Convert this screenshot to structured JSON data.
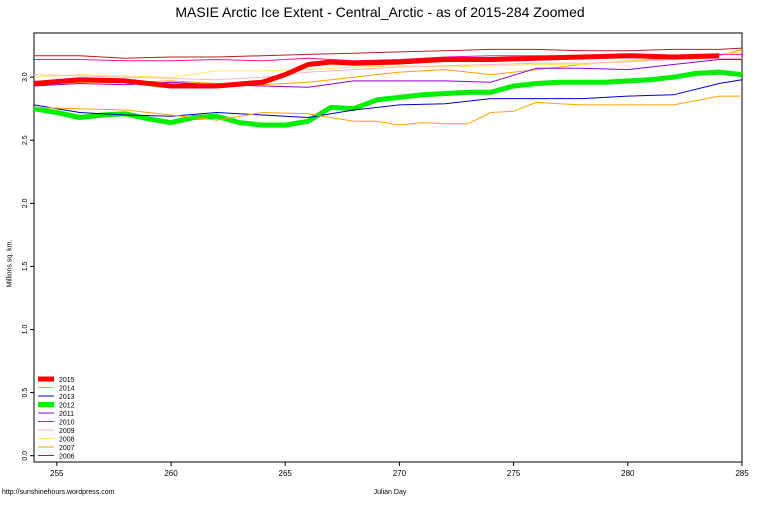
{
  "chart_data": {
    "type": "line",
    "title": "MASIE Arctic Ice Extent - Central_Arctic - as of 2015-284 Zoomed",
    "xlabel": "Julian Day",
    "ylabel": "Millions sq. km.",
    "footer": "http://sunshinehours.wordpress.com",
    "xlim": [
      254,
      285
    ],
    "ylim": [
      -0.05,
      3.35
    ],
    "xticks": [
      255,
      260,
      265,
      270,
      275,
      280,
      285
    ],
    "yticks": [
      "0.0",
      "0.5",
      "1.0",
      "1.5",
      "2.0",
      "2.5",
      "3.0"
    ],
    "grid": false,
    "legend_position": "bottom-left",
    "series": [
      {
        "name": "2015",
        "color": "#ff0000",
        "width": 5,
        "x": [
          254,
          256,
          258,
          260,
          262,
          264,
          265,
          266,
          267,
          268,
          270,
          272,
          274,
          276,
          278,
          280,
          282,
          284
        ],
        "y": [
          2.95,
          2.98,
          2.97,
          2.93,
          2.93,
          2.96,
          3.02,
          3.1,
          3.12,
          3.11,
          3.12,
          3.14,
          3.14,
          3.15,
          3.16,
          3.17,
          3.16,
          3.17
        ]
      },
      {
        "name": "2014",
        "color": "#ffa500",
        "width": 1,
        "x": [
          254,
          256,
          258,
          260,
          262,
          264,
          266,
          268,
          269,
          270,
          271,
          272,
          273,
          274,
          275,
          276,
          277,
          278,
          280,
          282,
          284,
          285
        ],
        "y": [
          2.76,
          2.75,
          2.74,
          2.7,
          2.66,
          2.72,
          2.71,
          2.65,
          2.65,
          2.62,
          2.64,
          2.63,
          2.63,
          2.72,
          2.73,
          2.8,
          2.79,
          2.78,
          2.78,
          2.78,
          2.85,
          2.85
        ]
      },
      {
        "name": "2013",
        "color": "#0000cd",
        "width": 1,
        "x": [
          254,
          256,
          258,
          260,
          262,
          264,
          266,
          268,
          270,
          272,
          274,
          276,
          278,
          280,
          282,
          284,
          285
        ],
        "y": [
          2.78,
          2.72,
          2.7,
          2.69,
          2.72,
          2.7,
          2.68,
          2.74,
          2.78,
          2.79,
          2.83,
          2.83,
          2.83,
          2.85,
          2.86,
          2.95,
          2.98
        ]
      },
      {
        "name": "2012",
        "color": "#00ee00",
        "width": 5,
        "x": [
          254,
          255,
          256,
          257,
          258,
          259,
          260,
          261,
          262,
          263,
          264,
          265,
          266,
          267,
          268,
          269,
          270,
          271,
          272,
          273,
          274,
          275,
          276,
          277,
          278,
          279,
          280,
          281,
          282,
          283,
          284,
          285
        ],
        "y": [
          2.75,
          2.72,
          2.68,
          2.7,
          2.71,
          2.67,
          2.64,
          2.68,
          2.69,
          2.64,
          2.62,
          2.62,
          2.65,
          2.76,
          2.75,
          2.82,
          2.84,
          2.86,
          2.87,
          2.88,
          2.88,
          2.93,
          2.95,
          2.96,
          2.96,
          2.96,
          2.97,
          2.98,
          3.0,
          3.03,
          3.04,
          3.02
        ]
      },
      {
        "name": "2011",
        "color": "#9400d3",
        "width": 1,
        "x": [
          254,
          256,
          258,
          260,
          262,
          264,
          266,
          268,
          270,
          272,
          274,
          276,
          278,
          280,
          282,
          284,
          285
        ],
        "y": [
          2.93,
          2.95,
          2.94,
          2.96,
          2.94,
          2.93,
          2.92,
          2.97,
          2.97,
          2.97,
          2.96,
          3.07,
          3.07,
          3.06,
          3.1,
          3.14,
          3.14
        ]
      },
      {
        "name": "2010",
        "color": "#ff1493",
        "width": 1,
        "x": [
          254,
          256,
          258,
          260,
          262,
          264,
          266,
          268,
          270,
          272,
          274,
          276,
          278,
          280,
          282,
          284,
          285
        ],
        "y": [
          3.14,
          3.14,
          3.13,
          3.13,
          3.14,
          3.13,
          3.15,
          3.13,
          3.14,
          3.16,
          3.17,
          3.17,
          3.17,
          3.17,
          3.17,
          3.18,
          3.18
        ]
      },
      {
        "name": "2009",
        "color": "#ffb6c1",
        "width": 1,
        "x": [
          254,
          256,
          258,
          260,
          262,
          264,
          266,
          268,
          270,
          272,
          274,
          276,
          278,
          280,
          282,
          284,
          285
        ],
        "y": [
          3.02,
          3.01,
          3.0,
          2.99,
          2.98,
          3.0,
          3.04,
          3.06,
          3.08,
          3.09,
          3.1,
          3.11,
          3.11,
          3.12,
          3.14,
          3.15,
          3.15
        ]
      },
      {
        "name": "2008",
        "color": "#ffe866",
        "width": 1,
        "x": [
          254,
          256,
          258,
          260,
          262,
          264,
          266,
          268,
          270,
          272,
          274,
          276,
          278,
          280,
          282,
          284,
          285
        ],
        "y": [
          3.0,
          3.02,
          3.01,
          3.0,
          3.05,
          3.05,
          3.06,
          3.08,
          3.09,
          3.08,
          3.09,
          3.1,
          3.1,
          3.13,
          3.16,
          3.18,
          3.2
        ]
      },
      {
        "name": "2007",
        "color": "#ffa000",
        "width": 1,
        "x": [
          254,
          256,
          258,
          260,
          262,
          264,
          266,
          268,
          270,
          272,
          274,
          276,
          278,
          280,
          282,
          284,
          285
        ],
        "y": [
          2.94,
          2.96,
          2.96,
          2.97,
          2.95,
          2.94,
          2.96,
          3.0,
          3.04,
          3.06,
          3.02,
          3.06,
          3.1,
          3.13,
          3.15,
          3.17,
          3.22
        ]
      },
      {
        "name": "2006",
        "color": "#b22222",
        "width": 1,
        "x": [
          254,
          256,
          258,
          260,
          262,
          264,
          266,
          268,
          270,
          272,
          274,
          276,
          278,
          280,
          282,
          284,
          285
        ],
        "y": [
          3.17,
          3.17,
          3.15,
          3.16,
          3.16,
          3.17,
          3.18,
          3.19,
          3.2,
          3.21,
          3.22,
          3.22,
          3.21,
          3.21,
          3.22,
          3.22,
          3.23
        ]
      }
    ]
  }
}
